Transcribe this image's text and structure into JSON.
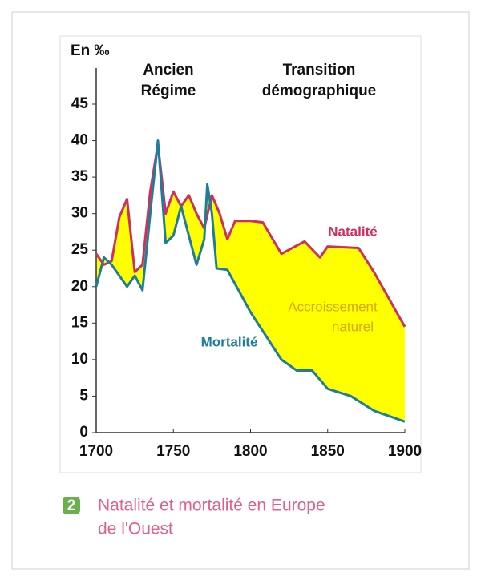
{
  "chart_data": {
    "type": "line",
    "y_label": "En ‰",
    "periods": [
      [
        "Ancien",
        "Régime"
      ],
      [
        "Transition",
        "démographique"
      ]
    ],
    "series": [
      {
        "name": "Natalité",
        "color": "#cf2f5c",
        "x": [
          1700,
          1705,
          1710,
          1715,
          1720,
          1725,
          1730,
          1735,
          1740,
          1745,
          1750,
          1755,
          1760,
          1765,
          1770,
          1775,
          1780,
          1785,
          1790,
          1800,
          1808,
          1820,
          1835,
          1845,
          1850,
          1870,
          1880,
          1900
        ],
        "values": [
          24.5,
          23,
          23.5,
          29.5,
          32,
          22,
          23,
          33,
          39.5,
          30,
          33,
          31,
          32.5,
          30,
          28,
          32.5,
          30,
          26.5,
          29,
          29,
          28.8,
          24.5,
          26.2,
          24,
          25.5,
          25.3,
          22,
          14.5
        ]
      },
      {
        "name": "Mortalité",
        "color": "#1f7d9c",
        "x": [
          1700,
          1705,
          1710,
          1720,
          1725,
          1730,
          1735,
          1740,
          1745,
          1750,
          1755,
          1760,
          1765,
          1770,
          1772,
          1775,
          1778,
          1785,
          1800,
          1820,
          1830,
          1840,
          1850,
          1865,
          1880,
          1900
        ],
        "values": [
          20,
          24,
          23,
          20,
          21.5,
          19.5,
          30,
          40,
          26,
          27,
          31,
          27,
          23,
          26.5,
          34,
          30,
          22.5,
          22.3,
          16.5,
          10,
          8.5,
          8.5,
          6,
          5,
          3,
          1.5
        ]
      }
    ],
    "fill_label": [
      "Accroissement",
      "naturel"
    ],
    "fill_color": "#ffff00",
    "fill_label_color": "#d6a800",
    "xlim": [
      1700,
      1900
    ],
    "xticks": [
      1700,
      1750,
      1800,
      1850,
      1900
    ],
    "ylim": [
      0,
      45
    ],
    "yticks": [
      0,
      5,
      10,
      15,
      20,
      25,
      30,
      35,
      40,
      45
    ]
  },
  "caption": {
    "number": "2",
    "lines": [
      "Natalité et mortalité en Europe",
      "de l'Ouest"
    ]
  }
}
